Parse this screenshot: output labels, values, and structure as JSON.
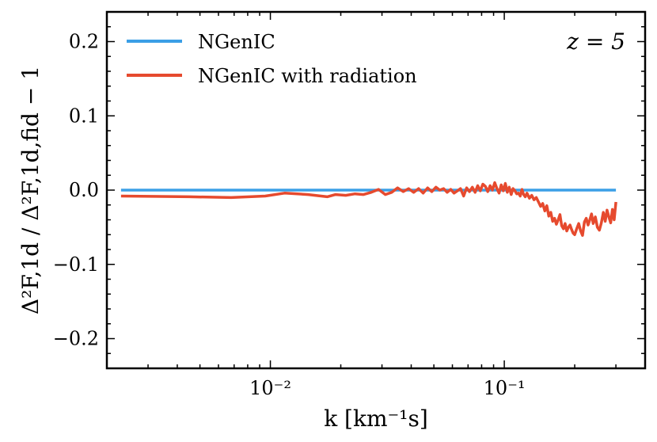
{
  "chart_data": {
    "type": "line",
    "title": "",
    "annotation": "z = 5",
    "xlabel": "k [km⁻¹s]",
    "ylabel": "Δ²F,1d / Δ²F,1d,fid − 1",
    "xscale": "log",
    "xlim": [
      0.002,
      0.4
    ],
    "ylim": [
      -0.24,
      0.24
    ],
    "x_major_ticks": [
      {
        "value": 0.01,
        "label": "10⁻²"
      },
      {
        "value": 0.1,
        "label": "10⁻¹"
      }
    ],
    "y_major_ticks": [
      {
        "value": 0.2,
        "label": "0.2"
      },
      {
        "value": 0.1,
        "label": "0.1"
      },
      {
        "value": 0.0,
        "label": "0.0"
      },
      {
        "value": -0.1,
        "label": "−0.1"
      },
      {
        "value": -0.2,
        "label": "−0.2"
      }
    ],
    "legend_position": "top-left",
    "series": [
      {
        "name": "NGenIC",
        "color": "#3b9fe6",
        "x": [
          0.0023,
          0.3
        ],
        "y": [
          0.0,
          0.0
        ]
      },
      {
        "name": "NGenIC with radiation",
        "color": "#e64a2e",
        "x": [
          0.0023,
          0.0045,
          0.0068,
          0.0095,
          0.0115,
          0.0145,
          0.0175,
          0.019,
          0.021,
          0.023,
          0.025,
          0.027,
          0.029,
          0.031,
          0.033,
          0.035,
          0.037,
          0.039,
          0.041,
          0.043,
          0.045,
          0.047,
          0.049,
          0.051,
          0.053,
          0.055,
          0.057,
          0.059,
          0.061,
          0.063,
          0.065,
          0.067,
          0.069,
          0.071,
          0.073,
          0.075,
          0.077,
          0.079,
          0.081,
          0.083,
          0.085,
          0.087,
          0.089,
          0.091,
          0.093,
          0.095,
          0.097,
          0.099,
          0.101,
          0.103,
          0.105,
          0.107,
          0.109,
          0.111,
          0.113,
          0.115,
          0.117,
          0.119,
          0.121,
          0.123,
          0.125,
          0.128,
          0.131,
          0.134,
          0.137,
          0.14,
          0.143,
          0.146,
          0.149,
          0.152,
          0.155,
          0.158,
          0.161,
          0.164,
          0.167,
          0.17,
          0.173,
          0.176,
          0.179,
          0.182,
          0.185,
          0.188,
          0.191,
          0.194,
          0.197,
          0.2,
          0.204,
          0.208,
          0.212,
          0.216,
          0.22,
          0.224,
          0.228,
          0.232,
          0.236,
          0.24,
          0.245,
          0.25,
          0.255,
          0.26,
          0.265,
          0.27,
          0.275,
          0.28,
          0.285,
          0.29,
          0.295,
          0.3
        ],
        "y": [
          -0.008,
          -0.009,
          -0.01,
          -0.008,
          -0.004,
          -0.006,
          -0.009,
          -0.006,
          -0.007,
          -0.005,
          -0.006,
          -0.003,
          0.001,
          -0.006,
          -0.003,
          0.003,
          -0.002,
          0.002,
          -0.003,
          0.002,
          -0.004,
          0.003,
          -0.002,
          0.004,
          0.0,
          0.002,
          -0.003,
          0.001,
          -0.004,
          -0.001,
          0.002,
          -0.008,
          0.003,
          -0.002,
          0.004,
          -0.003,
          0.006,
          -0.001,
          0.008,
          0.005,
          -0.002,
          0.006,
          0.0,
          0.01,
          0.002,
          -0.004,
          0.007,
          -0.001,
          0.009,
          -0.003,
          0.004,
          -0.006,
          0.002,
          -0.001,
          -0.005,
          -0.004,
          -0.008,
          0.001,
          -0.006,
          -0.009,
          -0.004,
          -0.011,
          -0.007,
          -0.013,
          -0.01,
          -0.016,
          -0.022,
          -0.018,
          -0.028,
          -0.021,
          -0.035,
          -0.03,
          -0.042,
          -0.038,
          -0.046,
          -0.04,
          -0.033,
          -0.048,
          -0.052,
          -0.045,
          -0.055,
          -0.05,
          -0.047,
          -0.053,
          -0.058,
          -0.06,
          -0.052,
          -0.045,
          -0.055,
          -0.061,
          -0.043,
          -0.038,
          -0.047,
          -0.04,
          -0.032,
          -0.045,
          -0.036,
          -0.05,
          -0.054,
          -0.044,
          -0.03,
          -0.042,
          -0.027,
          -0.036,
          -0.044,
          -0.026,
          -0.04,
          -0.016
        ]
      }
    ]
  }
}
